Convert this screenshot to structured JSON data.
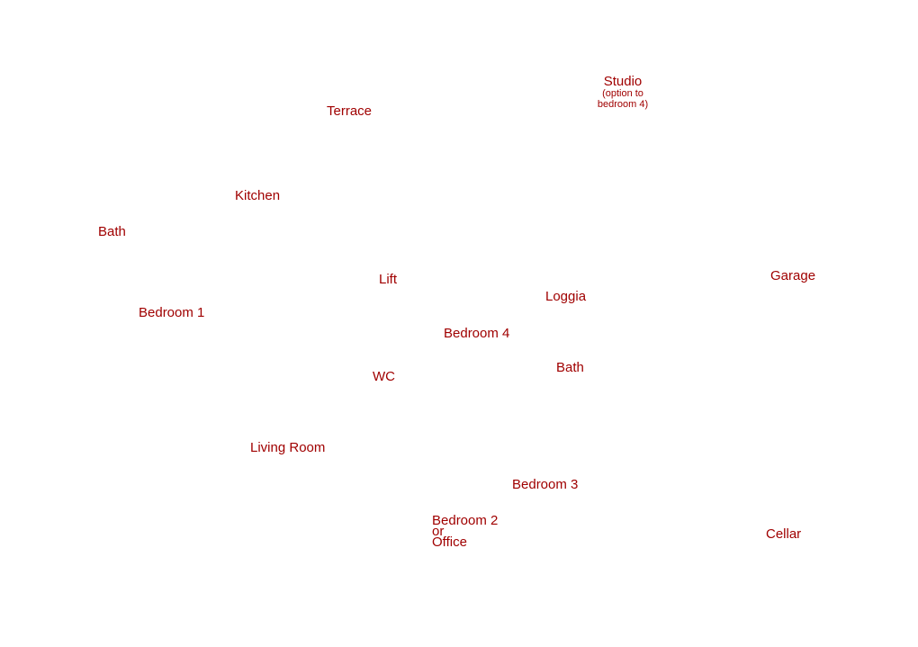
{
  "rooms": [
    {
      "label": "Studio",
      "note": [
        "(option to",
        "bedroom 4)"
      ]
    },
    {
      "label": "Terrace"
    },
    {
      "label": "Kitchen"
    },
    {
      "label": "Bath"
    },
    {
      "label": "Lift"
    },
    {
      "label": "Loggia"
    },
    {
      "label": "Garage"
    },
    {
      "label": "Bedroom 1"
    },
    {
      "label": "Bedroom 4"
    },
    {
      "label": "Bath"
    },
    {
      "label": "WC"
    },
    {
      "label": "Living Room"
    },
    {
      "label": "Bedroom 3"
    },
    {
      "lines": [
        "Bedroom 2",
        "or",
        "Office"
      ]
    },
    {
      "label": "Cellar"
    }
  ]
}
